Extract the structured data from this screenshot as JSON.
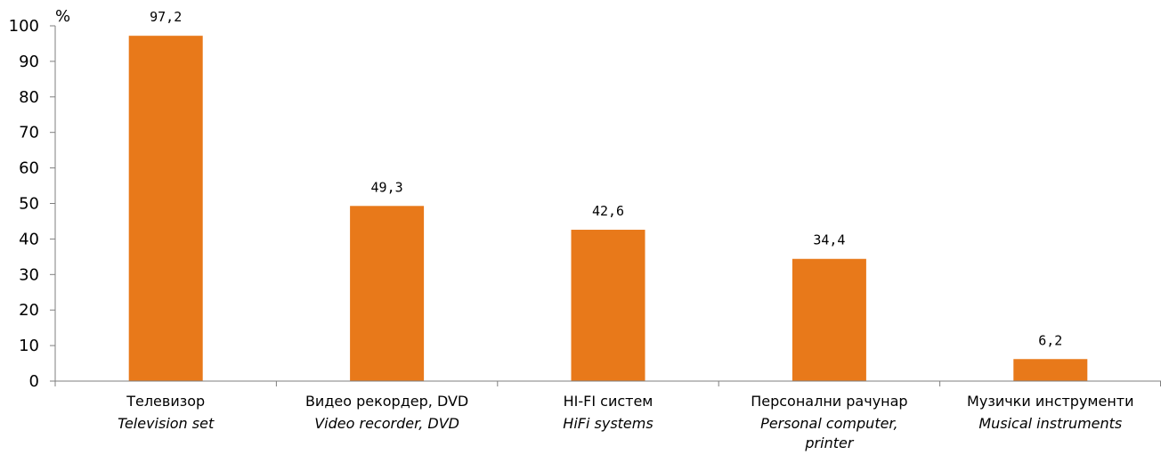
{
  "chart_data": {
    "type": "bar",
    "unit_label": "%",
    "ylim": [
      0,
      100
    ],
    "yticks": [
      0,
      10,
      20,
      30,
      40,
      50,
      60,
      70,
      80,
      90,
      100
    ],
    "categories": [
      {
        "label": "Телевизор",
        "label_en": [
          "Television set"
        ]
      },
      {
        "label": "Видео рекордер, DVD",
        "label_en": [
          "Video recorder, DVD"
        ]
      },
      {
        "label": "HI-FI систем",
        "label_en": [
          "HiFi systems"
        ]
      },
      {
        "label": "Персонални рачунар",
        "label_en": [
          "Personal computer,",
          "printer"
        ]
      },
      {
        "label": "Музички инструменти",
        "label_en": [
          "Musical instruments"
        ]
      }
    ],
    "values": [
      97.2,
      49.3,
      42.6,
      34.4,
      6.2
    ],
    "value_labels": [
      "97,2",
      "49,3",
      "42,6",
      "34,4",
      "6,2"
    ],
    "bar_color": "#E8791A",
    "axis_color": "#7F7F7F",
    "grid": false,
    "legend": "none"
  }
}
